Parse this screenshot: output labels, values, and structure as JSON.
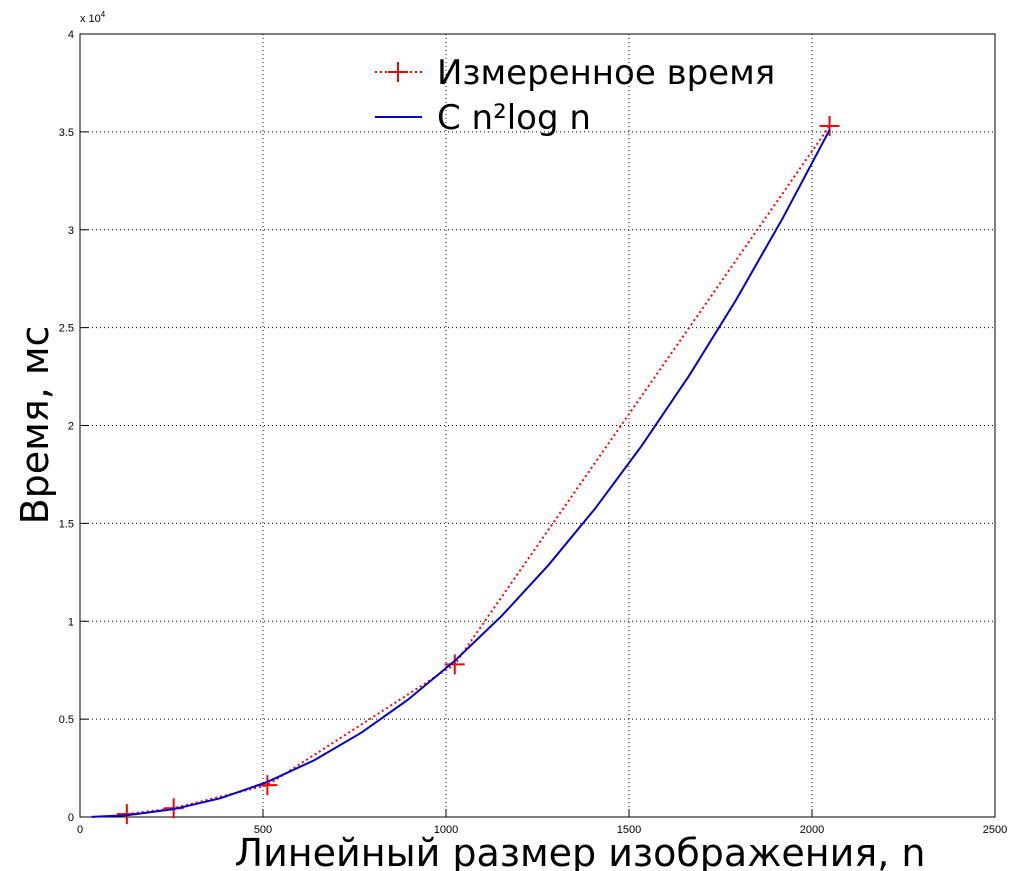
{
  "chart_data": {
    "type": "line",
    "xlabel": "Линейный размер изображения, n",
    "ylabel": "Время, мс",
    "y_multiplier": {
      "base": "x 10",
      "exponent": "4"
    },
    "xlim": [
      0,
      2500
    ],
    "xticks": [
      0,
      500,
      1000,
      1500,
      2000,
      2500
    ],
    "ylim": [
      0,
      4
    ],
    "yticks": [
      0,
      0.5,
      1,
      1.5,
      2,
      2.5,
      3,
      3.5,
      4
    ],
    "grid": true,
    "legend": "top",
    "series": [
      {
        "name": "Измеренное время",
        "color": "#ff0000",
        "style": "dotted",
        "marker": "+",
        "x": [
          128,
          256,
          512,
          1024,
          2048
        ],
        "values": [
          0.015,
          0.045,
          0.163,
          0.78,
          3.53
        ]
      },
      {
        "name": "C n²log n",
        "color": "#0000cc",
        "style": "solid",
        "x": [
          32,
          128,
          256,
          384,
          512,
          640,
          768,
          896,
          1024,
          1152,
          1280,
          1408,
          1536,
          1664,
          1792,
          1920,
          2048
        ],
        "values": [
          0.0004,
          0.0087,
          0.04,
          0.096,
          0.179,
          0.29,
          0.43,
          0.599,
          0.798,
          1.027,
          1.287,
          1.577,
          1.9,
          2.254,
          2.64,
          3.059,
          3.51
        ]
      }
    ]
  }
}
